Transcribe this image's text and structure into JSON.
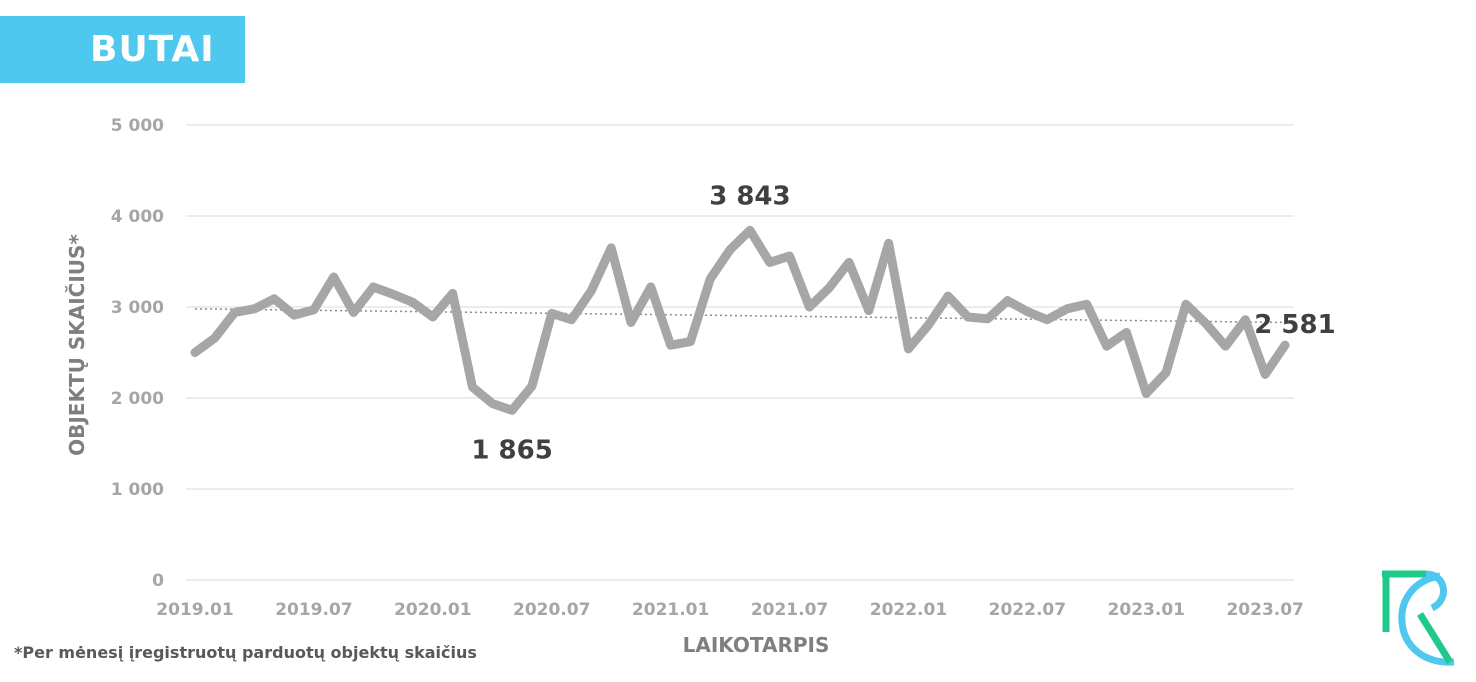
{
  "header": {
    "badge_label": "BUTAI"
  },
  "footnote": "*Per mėnesį įregistruotų parduotų objektų skaičius",
  "colors": {
    "badge": "#4ec8ef",
    "line": "#a6a6a6",
    "grid": "#d9d9d9",
    "tick_text": "#a6a6a6",
    "axis_title": "#7f7f7f",
    "annotation": "#404040",
    "logo_green": "#1fc98a",
    "logo_blue": "#4ec8ef"
  },
  "logo": {
    "icon": "rc-monogram-logo"
  },
  "chart_data": {
    "type": "line",
    "xlabel": "LAIKOTARPIS",
    "ylabel": "OBJEKTŲ SKAIČIUS*",
    "ylim": [
      0,
      5000
    ],
    "yticks": [
      "0",
      "1 000",
      "2 000",
      "3 000",
      "4 000",
      "5 000"
    ],
    "yticks_values": [
      0,
      1000,
      2000,
      3000,
      4000,
      5000
    ],
    "xtick_labels": [
      "2019.01",
      "2019.07",
      "2020.01",
      "2020.07",
      "2021.01",
      "2021.07",
      "2022.01",
      "2022.07",
      "2023.01",
      "2023.07"
    ],
    "x": [
      "2019.01",
      "2019.02",
      "2019.03",
      "2019.04",
      "2019.05",
      "2019.06",
      "2019.07",
      "2019.08",
      "2019.09",
      "2019.10",
      "2019.11",
      "2019.12",
      "2020.01",
      "2020.02",
      "2020.03",
      "2020.04",
      "2020.05",
      "2020.06",
      "2020.07",
      "2020.08",
      "2020.09",
      "2020.10",
      "2020.11",
      "2020.12",
      "2021.01",
      "2021.02",
      "2021.03",
      "2021.04",
      "2021.05",
      "2021.06",
      "2021.07",
      "2021.08",
      "2021.09",
      "2021.10",
      "2021.11",
      "2021.12",
      "2022.01",
      "2022.02",
      "2022.03",
      "2022.04",
      "2022.05",
      "2022.06",
      "2022.07",
      "2022.08",
      "2022.09",
      "2022.10",
      "2022.11",
      "2022.12",
      "2023.01",
      "2023.02",
      "2023.03",
      "2023.04",
      "2023.05",
      "2023.06",
      "2023.07",
      "2023.08"
    ],
    "values": [
      2500,
      2660,
      2940,
      2980,
      3090,
      2910,
      2970,
      3330,
      2940,
      3220,
      3140,
      3050,
      2890,
      3150,
      2120,
      1940,
      1865,
      2130,
      2930,
      2860,
      3180,
      3650,
      2830,
      3220,
      2580,
      2620,
      3310,
      3630,
      3843,
      3490,
      3560,
      3000,
      3210,
      3490,
      2960,
      3700,
      2540,
      2800,
      3120,
      2890,
      2870,
      3070,
      2950,
      2860,
      2980,
      3030,
      2570,
      2720,
      2050,
      2280,
      3030,
      2820,
      2570,
      2860,
      2260,
      2581
    ],
    "trendline": {
      "style": "dotted",
      "start": 2980,
      "end": 2830
    },
    "annotations": [
      {
        "label": "1 865",
        "index": 16
      },
      {
        "label": "3 843",
        "index": 28
      },
      {
        "label": "2 581",
        "index": 55
      }
    ],
    "grid": true,
    "legend": "none"
  }
}
